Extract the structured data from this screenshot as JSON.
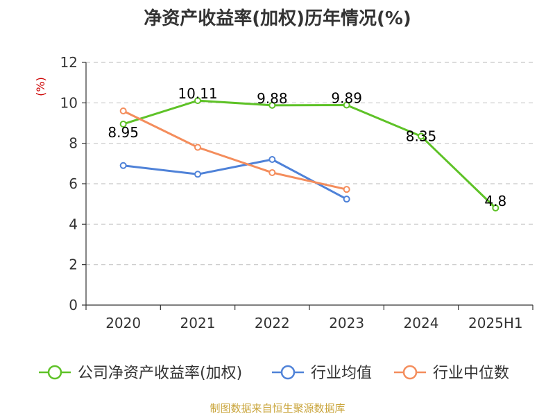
{
  "page": {
    "title": "净资产收益率(加权)历年情况(%)",
    "source": "制图数据来自恒生聚源数据库"
  },
  "chart_data": {
    "type": "line",
    "title": "净资产收益率(加权)历年情况(%)",
    "ylabel": "(%)",
    "categories": [
      "2020",
      "2021",
      "2022",
      "2023",
      "2024",
      "2025H1"
    ],
    "ylim": [
      0,
      12
    ],
    "yticks": [
      0,
      2,
      4,
      6,
      8,
      10,
      12
    ],
    "grid": true,
    "legend_placement": "bottom",
    "series": [
      {
        "name": "公司净资产收益率(加权)",
        "color": "#5ec227",
        "values": [
          8.95,
          10.11,
          9.88,
          9.89,
          8.35,
          4.8
        ],
        "labels": [
          "8.95",
          "10.11",
          "9.88",
          "9.89",
          "8.35",
          "4.8"
        ]
      },
      {
        "name": "行业均值",
        "color": "#4f82d8",
        "values": [
          6.9,
          6.47,
          7.2,
          5.24,
          null,
          null
        ]
      },
      {
        "name": "行业中位数",
        "color": "#f48d5c",
        "values": [
          9.6,
          7.8,
          6.55,
          5.72,
          null,
          null
        ]
      }
    ]
  }
}
